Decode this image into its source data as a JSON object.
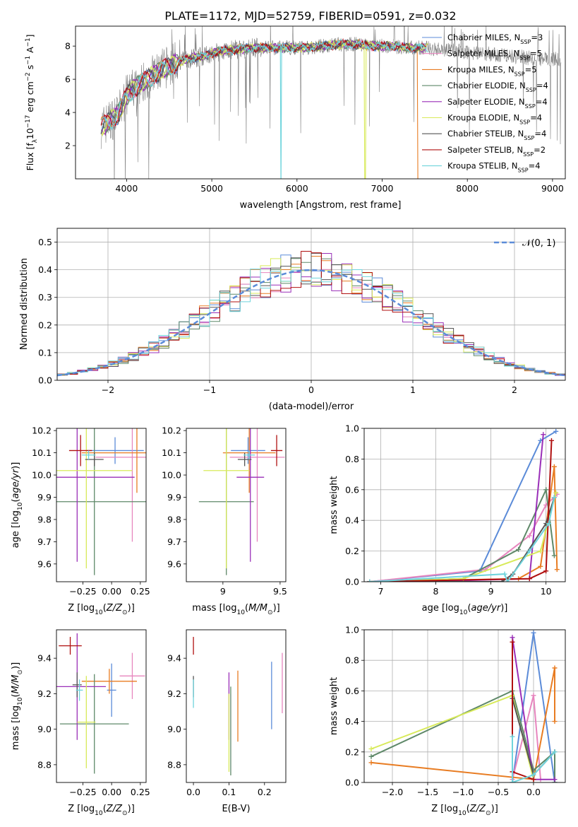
{
  "figure_title": "PLATE=1172, MJD=52759, FIBERID=0591, z=0.032",
  "models": [
    {
      "name": "Chabrier MILES",
      "nssp": "3",
      "color": "#5b8bd8"
    },
    {
      "name": "Salpeter MILES",
      "nssp": "5",
      "color": "#e785be"
    },
    {
      "name": "Kroupa MILES",
      "nssp": "5",
      "color": "#e87c22"
    },
    {
      "name": "Chabrier ELODIE",
      "nssp": "4",
      "color": "#5e8868"
    },
    {
      "name": "Salpeter ELODIE",
      "nssp": "4",
      "color": "#9a2fb8"
    },
    {
      "name": "Kroupa ELODIE",
      "nssp": "4",
      "color": "#d8ea5a"
    },
    {
      "name": "Chabrier STELIB",
      "nssp": "4",
      "color": "#555555"
    },
    {
      "name": "Salpeter STELIB",
      "nssp": "2",
      "color": "#b01010"
    },
    {
      "name": "Kroupa STELIB",
      "nssp": "4",
      "color": "#6fd4dc"
    }
  ],
  "chart_data": [
    {
      "id": "spectrum",
      "type": "line",
      "xlabel": "wavelength [Angstrom, rest frame]",
      "ylabel": "Flux [f_λ 10^-17 erg cm^-2 s^-1 A^-1]",
      "xlim": [
        3400,
        9150
      ],
      "ylim": [
        0,
        9.2
      ],
      "xticks": [
        4000,
        5000,
        6000,
        7000,
        8000,
        9000
      ],
      "yticks": [
        2,
        4,
        6,
        8
      ],
      "legend": "upper right",
      "grid": false,
      "data_color": "#7f7f7f",
      "data_range": [
        3700,
        9100
      ],
      "continuum": {
        "x": [
          3700,
          3800,
          3900,
          4000,
          4100,
          4300,
          4500,
          4700,
          4900,
          5100,
          5300,
          5500,
          5700,
          5900,
          6100,
          6300,
          6500,
          6700,
          6900,
          7100,
          7300,
          7500,
          7700,
          7900,
          8100,
          8300,
          8500,
          8700,
          8900,
          9100
        ],
        "y": [
          3.1,
          3.5,
          3.9,
          5.0,
          5.5,
          6.2,
          6.8,
          7.2,
          7.4,
          7.7,
          7.8,
          7.9,
          7.9,
          7.9,
          7.9,
          8.0,
          8.1,
          8.1,
          8.0,
          8.0,
          7.9,
          7.9,
          7.8,
          7.7,
          7.6,
          7.5,
          7.4,
          7.3,
          7.2,
          7.2
        ]
      },
      "model_range": [
        3700,
        7500
      ],
      "model_dropouts": [
        {
          "x": 5810,
          "model": "Kroupa STELIB"
        },
        {
          "x": 6800,
          "model": "Kroupa ELODIE"
        },
        {
          "x": 7420,
          "model": "Kroupa MILES"
        }
      ]
    },
    {
      "id": "residual_hist",
      "type": "histogram",
      "xlabel": "(data-model)/error",
      "ylabel": "Normed distribution",
      "xlim": [
        -2.5,
        2.5
      ],
      "ylim": [
        0,
        0.55
      ],
      "xticks": [
        -2,
        -1,
        0,
        1,
        2
      ],
      "yticks": [
        0.0,
        0.1,
        0.2,
        0.3,
        0.4,
        0.5
      ],
      "grid": true,
      "legend": "upper right",
      "reference": {
        "name": "𝒩(0, 1)",
        "mean": 0,
        "sigma": 1,
        "color": "#5b8bd8"
      },
      "bin_width": 0.1
    },
    {
      "id": "age_vs_Z",
      "type": "errorbar",
      "xlabel": "Z [log10(Z/Z☉)]",
      "ylabel": "age  [log10(age/yr)]",
      "xlim": [
        -0.48,
        0.3
      ],
      "ylim": [
        9.52,
        10.21
      ],
      "xticks": [
        -0.25,
        0.0,
        0.25
      ],
      "xticklabels": [
        "−0.25",
        "0.00",
        "0.25"
      ],
      "yticks": [
        9.6,
        9.7,
        9.8,
        9.9,
        10.0,
        10.1,
        10.2
      ],
      "points": [
        {
          "model": "Chabrier MILES",
          "x": 0.03,
          "xerr": 0.25,
          "y": 10.11,
          "yerr": 0.06
        },
        {
          "model": "Salpeter MILES",
          "x": 0.18,
          "xerr": 0.32,
          "y": 10.08,
          "yerr": 0.38
        },
        {
          "model": "Kroupa MILES",
          "x": 0.22,
          "xerr": 0.48,
          "y": 10.1,
          "yerr": 0.18
        },
        {
          "model": "Chabrier ELODIE",
          "x": -0.15,
          "xerr": 0.5,
          "y": 9.88,
          "yerr": 0.33
        },
        {
          "model": "Salpeter ELODIE",
          "x": -0.3,
          "xerr": 0.5,
          "y": 9.99,
          "yerr": 0.38
        },
        {
          "model": "Kroupa ELODIE",
          "x": -0.22,
          "xerr": 0.4,
          "y": 10.02,
          "yerr": 0.44
        },
        {
          "model": "Chabrier STELIB",
          "x": -0.15,
          "xerr": 0.08,
          "y": 10.07,
          "yerr": 0.03
        },
        {
          "model": "Salpeter STELIB",
          "x": -0.27,
          "xerr": 0.1,
          "y": 10.11,
          "yerr": 0.07
        },
        {
          "model": "Kroupa STELIB",
          "x": -0.2,
          "xerr": 0.06,
          "y": 10.09,
          "yerr": 0.02
        }
      ]
    },
    {
      "id": "age_vs_mass",
      "type": "errorbar",
      "xlabel": "mass [log10(M/M☉)]",
      "ylabel": "",
      "xlim": [
        8.68,
        9.55
      ],
      "ylim": [
        9.52,
        10.21
      ],
      "xticks": [
        9.0,
        9.5
      ],
      "yticks": [
        9.6,
        9.7,
        9.8,
        9.9,
        10.0,
        10.1,
        10.2
      ],
      "points": [
        {
          "model": "Chabrier MILES",
          "x": 9.22,
          "xerr": 0.15,
          "y": 10.11,
          "yerr": 0.06
        },
        {
          "model": "Salpeter MILES",
          "x": 9.3,
          "xerr": 0.24,
          "y": 10.08,
          "yerr": 0.38
        },
        {
          "model": "Kroupa MILES",
          "x": 9.23,
          "xerr": 0.23,
          "y": 10.1,
          "yerr": 0.18
        },
        {
          "model": "Chabrier ELODIE",
          "x": 9.03,
          "xerr": 0.24,
          "y": 9.88,
          "yerr": 0.33
        },
        {
          "model": "Salpeter ELODIE",
          "x": 9.24,
          "xerr": 0.12,
          "y": 9.99,
          "yerr": 0.38
        },
        {
          "model": "Kroupa ELODIE",
          "x": 9.03,
          "xerr": 0.2,
          "y": 10.02,
          "yerr": 0.44
        },
        {
          "model": "Chabrier STELIB",
          "x": 9.19,
          "xerr": 0.06,
          "y": 10.07,
          "yerr": 0.03
        },
        {
          "model": "Salpeter STELIB",
          "x": 9.47,
          "xerr": 0.05,
          "y": 10.11,
          "yerr": 0.07
        },
        {
          "model": "Kroupa STELIB",
          "x": 9.23,
          "xerr": 0.05,
          "y": 10.09,
          "yerr": 0.02
        }
      ]
    },
    {
      "id": "massweight_vs_age",
      "type": "line",
      "xlabel": "age  [log10(age/yr)]",
      "ylabel": "mass weight",
      "xlim": [
        6.7,
        10.35
      ],
      "ylim": [
        0,
        1
      ],
      "xticks": [
        7,
        8,
        9,
        10
      ],
      "yticks": [
        0.0,
        0.2,
        0.4,
        0.6,
        0.8,
        1.0
      ],
      "grid": true,
      "series": [
        {
          "model": "Chabrier MILES",
          "x": [
            6.8,
            8.8,
            9.9,
            10.18
          ],
          "y": [
            0.0,
            0.07,
            0.92,
            0.98
          ]
        },
        {
          "model": "Salpeter MILES",
          "x": [
            6.8,
            8.9,
            9.7,
            10.0,
            10.2
          ],
          "y": [
            0.0,
            0.08,
            0.3,
            0.5,
            0.57
          ]
        },
        {
          "model": "Kroupa MILES",
          "x": [
            6.8,
            9.5,
            9.9,
            10.15,
            10.2
          ],
          "y": [
            0.0,
            0.02,
            0.1,
            0.75,
            0.08
          ]
        },
        {
          "model": "Chabrier ELODIE",
          "x": [
            6.8,
            8.5,
            9.5,
            10.0,
            10.15
          ],
          "y": [
            0.0,
            0.02,
            0.21,
            0.6,
            0.17
          ]
        },
        {
          "model": "Salpeter ELODIE",
          "x": [
            6.8,
            7.7,
            9.7,
            9.95
          ],
          "y": [
            0.0,
            0.0,
            0.02,
            0.96
          ]
        },
        {
          "model": "Kroupa ELODIE",
          "x": [
            6.8,
            8.5,
            9.9,
            10.18
          ],
          "y": [
            0.0,
            0.02,
            0.2,
            0.58
          ]
        },
        {
          "model": "Chabrier STELIB",
          "x": [
            6.8,
            9.2,
            9.4,
            10.0,
            10.15
          ],
          "y": [
            0.0,
            0.0,
            0.05,
            0.38,
            0.55
          ]
        },
        {
          "model": "Salpeter STELIB",
          "x": [
            6.8,
            9.7,
            10.0,
            10.1
          ],
          "y": [
            0.0,
            0.02,
            0.07,
            0.92
          ]
        },
        {
          "model": "Kroupa STELIB",
          "x": [
            6.8,
            9.25,
            9.3,
            9.7,
            10.05,
            10.15
          ],
          "y": [
            0.0,
            0.05,
            0.0,
            0.2,
            0.38,
            0.55
          ]
        }
      ]
    },
    {
      "id": "mass_vs_Z",
      "type": "errorbar",
      "xlabel": "Z [log10(Z/Z☉)]",
      "ylabel": "mass [log10(M/M☉)]",
      "xlim": [
        -0.48,
        0.3
      ],
      "ylim": [
        8.7,
        9.56
      ],
      "xticks": [
        -0.25,
        0.0,
        0.25
      ],
      "xticklabels": [
        "−0.25",
        "0.00",
        "0.25"
      ],
      "yticks": [
        8.8,
        9.0,
        9.2,
        9.4
      ],
      "points": [
        {
          "model": "Chabrier MILES",
          "x": 0.0,
          "xerr": 0.04,
          "y": 9.22,
          "yerr": 0.15
        },
        {
          "model": "Salpeter MILES",
          "x": 0.18,
          "xerr": 0.11,
          "y": 9.3,
          "yerr": 0.13
        },
        {
          "model": "Kroupa MILES",
          "x": -0.02,
          "xerr": 0.24,
          "y": 9.27,
          "yerr": 0.07
        },
        {
          "model": "Chabrier ELODIE",
          "x": -0.15,
          "xerr": 0.3,
          "y": 9.03,
          "yerr": 0.28
        },
        {
          "model": "Salpeter ELODIE",
          "x": -0.3,
          "xerr": 0.25,
          "y": 9.24,
          "yerr": 0.3
        },
        {
          "model": "Kroupa ELODIE",
          "x": -0.22,
          "xerr": 0.08,
          "y": 9.04,
          "yerr": 0.26
        },
        {
          "model": "Chabrier STELIB",
          "x": -0.3,
          "xerr": 0.04,
          "y": 9.25,
          "yerr": 0.07
        },
        {
          "model": "Salpeter STELIB",
          "x": -0.36,
          "xerr": 0.1,
          "y": 9.47,
          "yerr": 0.05
        },
        {
          "model": "Kroupa STELIB",
          "x": -0.28,
          "xerr": 0.03,
          "y": 9.22,
          "yerr": 0.06
        }
      ]
    },
    {
      "id": "mass_vs_ebv",
      "type": "errorbar",
      "xlabel": "E(B-V)",
      "ylabel": "",
      "xlim": [
        -0.02,
        0.26
      ],
      "ylim": [
        8.7,
        9.56
      ],
      "xticks": [
        0.0,
        0.1,
        0.2
      ],
      "xticklabels": [
        "0.0",
        "0.1",
        "0.2"
      ],
      "yticks": [
        8.8,
        9.0,
        9.2,
        9.4
      ],
      "points": [
        {
          "model": "Chabrier MILES",
          "x": 0.22,
          "y": 9.19,
          "yerr": 0.19
        },
        {
          "model": "Salpeter MILES",
          "x": 0.25,
          "y": 9.26,
          "yerr": 0.17
        },
        {
          "model": "Kroupa MILES",
          "x": 0.125,
          "y": 9.13,
          "yerr": 0.2
        },
        {
          "model": "Chabrier ELODIE",
          "x": 0.105,
          "y": 8.99,
          "yerr": 0.25
        },
        {
          "model": "Salpeter ELODIE",
          "x": 0.1,
          "y": 9.13,
          "yerr": 0.19
        },
        {
          "model": "Kroupa ELODIE",
          "x": 0.1,
          "y": 8.98,
          "yerr": 0.22
        },
        {
          "model": "Chabrier STELIB",
          "x": 0.0,
          "y": 9.24,
          "yerr": 0.06
        },
        {
          "model": "Salpeter STELIB",
          "x": 0.0,
          "y": 9.47,
          "yerr": 0.05
        },
        {
          "model": "Kroupa STELIB",
          "x": 0.0,
          "y": 9.2,
          "yerr": 0.08
        }
      ]
    },
    {
      "id": "massweight_vs_Z",
      "type": "line",
      "xlabel": "Z [log10(Z/Z☉)]",
      "ylabel": "mass weight",
      "xlim": [
        -2.4,
        0.45
      ],
      "ylim": [
        0,
        1
      ],
      "xticks": [
        -2.0,
        -1.5,
        -1.0,
        -0.5,
        0.0
      ],
      "xticklabels": [
        "−2.0",
        "−1.5",
        "−1.0",
        "−0.5",
        "0.0"
      ],
      "yticks": [
        0.0,
        0.2,
        0.4,
        0.6,
        0.8,
        1.0
      ],
      "grid": true,
      "series": [
        {
          "model": "Chabrier MILES",
          "x": [
            -0.3,
            0.0,
            0.3
          ],
          "y": [
            0.0,
            0.98,
            0.0
          ]
        },
        {
          "model": "Salpeter MILES",
          "x": [
            -0.3,
            0.0,
            0.1
          ],
          "y": [
            0.02,
            0.57,
            0.02
          ]
        },
        {
          "model": "Kroupa MILES",
          "x": [
            -2.3,
            0.0,
            0.3,
            0.3
          ],
          "y": [
            0.13,
            0.02,
            0.75,
            0.4
          ]
        },
        {
          "model": "Chabrier ELODIE",
          "x": [
            -2.3,
            -0.3,
            0.0,
            0.3,
            0.3
          ],
          "y": [
            0.17,
            0.6,
            0.08,
            0.2,
            0.0
          ]
        },
        {
          "model": "Salpeter ELODIE",
          "x": [
            -0.3,
            0.0,
            0.3
          ],
          "y": [
            0.95,
            0.02,
            0.02
          ]
        },
        {
          "model": "Kroupa ELODIE",
          "x": [
            -2.3,
            -0.3,
            0.0
          ],
          "y": [
            0.22,
            0.57,
            0.02
          ]
        },
        {
          "model": "Chabrier STELIB",
          "x": [
            -0.3,
            0.0,
            0.3
          ],
          "y": [
            0.55,
            0.05,
            0.2
          ]
        },
        {
          "model": "Salpeter STELIB",
          "x": [
            -0.3,
            -0.3,
            0.0
          ],
          "y": [
            0.92,
            0.07,
            0.02
          ]
        },
        {
          "model": "Kroupa STELIB",
          "x": [
            -0.3,
            -0.3,
            0.0,
            0.3
          ],
          "y": [
            0.3,
            0.0,
            0.05,
            0.2
          ]
        }
      ]
    }
  ]
}
